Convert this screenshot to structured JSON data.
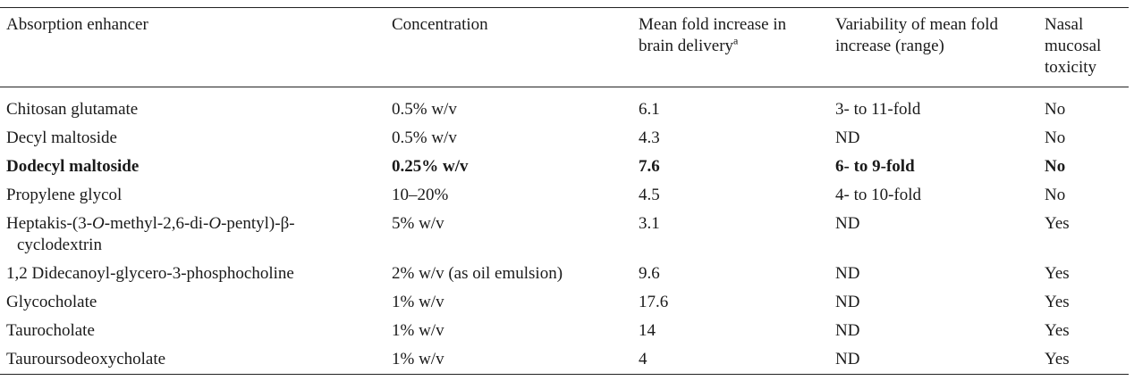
{
  "table": {
    "headers": {
      "absorption_enhancer": "Absorption enhancer",
      "concentration": "Concentration",
      "mean_fold_line1": "Mean fold increase in",
      "mean_fold_line2": "brain delivery",
      "mean_fold_sup": "a",
      "variability_line1": "Variability of mean fold",
      "variability_line2": "increase (range)",
      "toxicity_line1": "Nasal",
      "toxicity_line2": "mucosal",
      "toxicity_line3": "toxicity"
    },
    "rows": [
      {
        "enhancer": "Chitosan glutamate",
        "concentration": "0.5% w/v",
        "mean_fold": "6.1",
        "variability": "3- to 11-fold",
        "toxicity": "No"
      },
      {
        "enhancer": "Decyl maltoside",
        "concentration": "0.5% w/v",
        "mean_fold": "4.3",
        "variability": "ND",
        "toxicity": "No"
      },
      {
        "enhancer": "Dodecyl maltoside",
        "concentration": "0.25% w/v",
        "mean_fold": "7.6",
        "variability": "6- to 9-fold",
        "toxicity": "No"
      },
      {
        "enhancer": "Propylene glycol",
        "concentration": "10–20%",
        "mean_fold": "4.5",
        "variability": "4- to 10-fold",
        "toxicity": "No"
      },
      {
        "enhancer_parts": [
          "Heptakis-(3-",
          "O",
          "-methyl-2,6-di-",
          "O",
          "-pentyl)-β-",
          "cyclodextrin"
        ],
        "concentration": "5% w/v",
        "mean_fold": "3.1",
        "variability": "ND",
        "toxicity": "Yes"
      },
      {
        "enhancer": "1,2 Didecanoyl-glycero-3-phosphocholine",
        "concentration": "2% w/v (as oil emulsion)",
        "mean_fold": "9.6",
        "variability": "ND",
        "toxicity": "Yes"
      },
      {
        "enhancer": "Glycocholate",
        "concentration": "1% w/v",
        "mean_fold": "17.6",
        "variability": "ND",
        "toxicity": "Yes"
      },
      {
        "enhancer": "Taurocholate",
        "concentration": "1% w/v",
        "mean_fold": "14",
        "variability": "ND",
        "toxicity": "Yes"
      },
      {
        "enhancer": "Tauroursodeoxycholate",
        "concentration": "1% w/v",
        "mean_fold": "4",
        "variability": "ND",
        "toxicity": "Yes"
      }
    ]
  }
}
